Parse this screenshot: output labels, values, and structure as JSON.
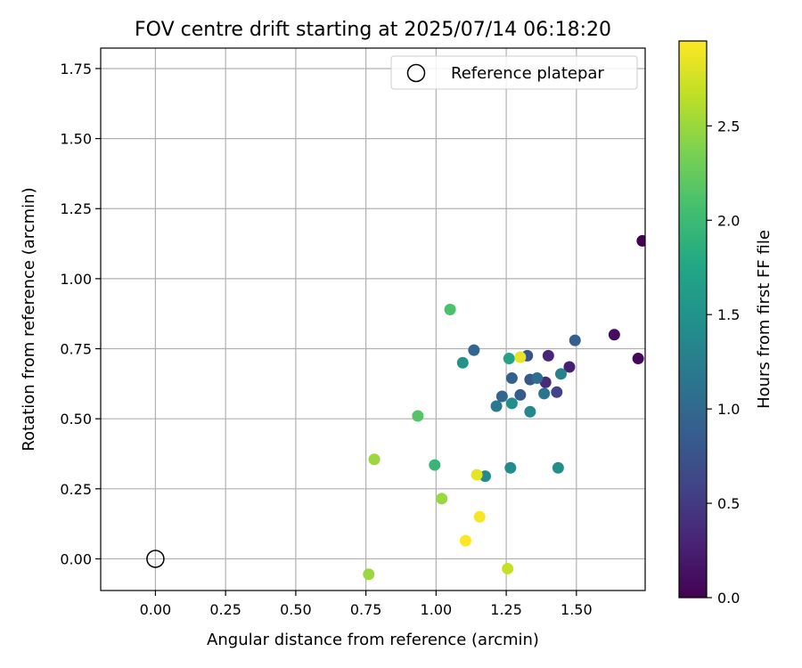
{
  "chart_data": {
    "type": "scatter",
    "title": "FOV centre drift starting at 2025/07/14 06:18:20",
    "xlabel": "Angular distance from reference (arcmin)",
    "ylabel": "Rotation from reference (arcmin)",
    "xlim": [
      -0.195,
      1.745
    ],
    "ylim": [
      -0.113,
      1.823
    ],
    "x_ticks": [
      "0.00",
      "0.25",
      "0.50",
      "0.75",
      "1.00",
      "1.25",
      "1.50"
    ],
    "x_tick_values": [
      0,
      0.25,
      0.5,
      0.75,
      1.0,
      1.25,
      1.5
    ],
    "y_ticks": [
      "0.00",
      "0.25",
      "0.50",
      "0.75",
      "1.00",
      "1.25",
      "1.50",
      "1.75"
    ],
    "y_tick_values": [
      0,
      0.25,
      0.5,
      0.75,
      1.0,
      1.25,
      1.5,
      1.75
    ],
    "grid": true,
    "legend": {
      "position": "top-right",
      "entries": [
        "Reference platepar"
      ]
    },
    "reference_point": {
      "x": 0,
      "y": 0,
      "name": "Reference platepar"
    },
    "colorbar": {
      "label": "Hours from first FF file",
      "colormap": "viridis",
      "range": [
        0,
        2.95
      ],
      "ticks": [
        "0.0",
        "0.5",
        "1.0",
        "1.5",
        "2.0",
        "2.5"
      ],
      "tick_values": [
        0,
        0.5,
        1.0,
        1.5,
        2.0,
        2.5
      ]
    },
    "points": [
      {
        "x": 1.735,
        "y": 1.135,
        "hours": 0.0
      },
      {
        "x": 1.72,
        "y": 0.715,
        "hours": 0.05
      },
      {
        "x": 1.635,
        "y": 0.8,
        "hours": 0.1
      },
      {
        "x": 1.475,
        "y": 0.685,
        "hours": 0.25
      },
      {
        "x": 1.4,
        "y": 0.725,
        "hours": 0.3
      },
      {
        "x": 1.39,
        "y": 0.63,
        "hours": 0.35
      },
      {
        "x": 1.43,
        "y": 0.595,
        "hours": 0.6
      },
      {
        "x": 1.495,
        "y": 0.78,
        "hours": 0.9
      },
      {
        "x": 1.325,
        "y": 0.725,
        "hours": 0.75
      },
      {
        "x": 1.335,
        "y": 0.64,
        "hours": 0.8
      },
      {
        "x": 1.3,
        "y": 0.585,
        "hours": 0.85
      },
      {
        "x": 1.27,
        "y": 0.645,
        "hours": 0.9
      },
      {
        "x": 1.235,
        "y": 0.58,
        "hours": 0.95
      },
      {
        "x": 1.135,
        "y": 0.745,
        "hours": 0.95
      },
      {
        "x": 1.36,
        "y": 0.645,
        "hours": 1.05
      },
      {
        "x": 1.385,
        "y": 0.59,
        "hours": 1.15
      },
      {
        "x": 1.215,
        "y": 0.545,
        "hours": 1.2
      },
      {
        "x": 1.445,
        "y": 0.66,
        "hours": 1.3
      },
      {
        "x": 1.335,
        "y": 0.525,
        "hours": 1.35
      },
      {
        "x": 1.27,
        "y": 0.555,
        "hours": 1.45
      },
      {
        "x": 1.435,
        "y": 0.325,
        "hours": 1.45
      },
      {
        "x": 1.265,
        "y": 0.325,
        "hours": 1.4
      },
      {
        "x": 1.175,
        "y": 0.295,
        "hours": 1.4
      },
      {
        "x": 1.095,
        "y": 0.7,
        "hours": 1.5
      },
      {
        "x": 1.26,
        "y": 0.715,
        "hours": 1.7
      },
      {
        "x": 0.995,
        "y": 0.335,
        "hours": 1.95
      },
      {
        "x": 1.05,
        "y": 0.89,
        "hours": 2.1
      },
      {
        "x": 0.935,
        "y": 0.51,
        "hours": 2.15
      },
      {
        "x": 0.78,
        "y": 0.355,
        "hours": 2.5
      },
      {
        "x": 1.02,
        "y": 0.215,
        "hours": 2.5
      },
      {
        "x": 0.76,
        "y": -0.055,
        "hours": 2.5
      },
      {
        "x": 1.255,
        "y": -0.035,
        "hours": 2.7
      },
      {
        "x": 1.3,
        "y": 0.72,
        "hours": 2.85
      },
      {
        "x": 1.145,
        "y": 0.3,
        "hours": 2.85
      },
      {
        "x": 1.155,
        "y": 0.15,
        "hours": 2.92
      },
      {
        "x": 1.105,
        "y": 0.065,
        "hours": 2.95
      }
    ]
  }
}
